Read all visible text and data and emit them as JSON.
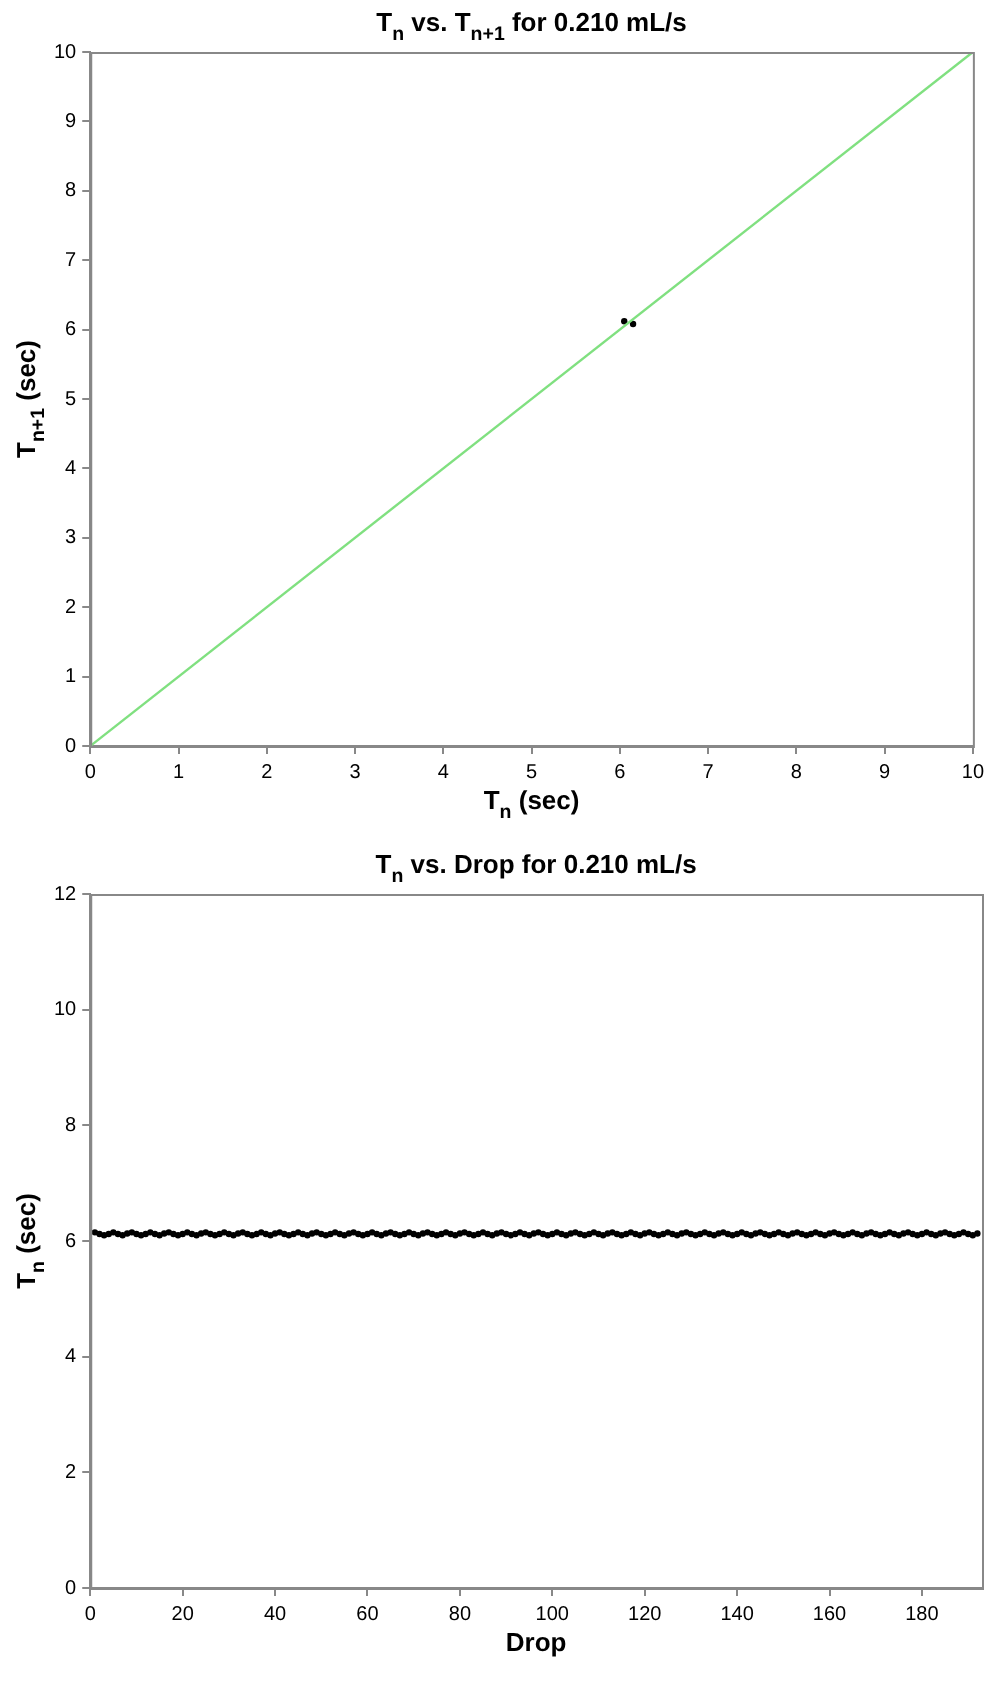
{
  "chart_data": [
    {
      "type": "scatter",
      "title": "T$_{n}$ vs. T$_{n+1}$ for 0.210 mL/s",
      "xlabel": "T$_{n}$ (sec)",
      "ylabel": "T$_{n+1}$ (sec)",
      "xlim": [
        0,
        10
      ],
      "ylim": [
        0,
        10
      ],
      "xticks": [
        0,
        1,
        2,
        3,
        4,
        5,
        6,
        7,
        8,
        9,
        10
      ],
      "yticks": [
        0,
        1,
        2,
        3,
        4,
        5,
        6,
        7,
        8,
        9,
        10
      ],
      "grid": false,
      "legend": false,
      "series": [
        {
          "type": "line",
          "marker": "none",
          "color": "#80e080",
          "x": [
            0,
            10
          ],
          "values": [
            0,
            10
          ]
        },
        {
          "type": "scatter",
          "marker": "circle",
          "color": "#000000",
          "x": [
            6.05,
            6.15
          ],
          "values": [
            6.12,
            6.08
          ]
        }
      ]
    },
    {
      "type": "scatter",
      "title": "T$_{n}$ vs. Drop for 0.210 mL/s",
      "xlabel": "Drop",
      "ylabel": "T$_{n}$ (sec)",
      "xlim": [
        0,
        193
      ],
      "ylim": [
        0,
        12
      ],
      "xticks": [
        0,
        20,
        40,
        60,
        80,
        100,
        120,
        140,
        160,
        180
      ],
      "yticks": [
        0,
        2,
        4,
        6,
        8,
        10,
        12
      ],
      "grid": false,
      "legend": false,
      "series": [
        {
          "type": "scatter",
          "marker": "circle",
          "color": "#000000",
          "x": [
            1,
            2,
            3,
            4,
            5,
            6,
            7,
            8,
            9,
            10,
            11,
            12,
            13,
            14,
            15,
            16,
            17,
            18,
            19,
            20,
            21,
            22,
            23,
            24,
            25,
            26,
            27,
            28,
            29,
            30,
            31,
            32,
            33,
            34,
            35,
            36,
            37,
            38,
            39,
            40,
            41,
            42,
            43,
            44,
            45,
            46,
            47,
            48,
            49,
            50,
            51,
            52,
            53,
            54,
            55,
            56,
            57,
            58,
            59,
            60,
            61,
            62,
            63,
            64,
            65,
            66,
            67,
            68,
            69,
            70,
            71,
            72,
            73,
            74,
            75,
            76,
            77,
            78,
            79,
            80,
            81,
            82,
            83,
            84,
            85,
            86,
            87,
            88,
            89,
            90,
            91,
            92,
            93,
            94,
            95,
            96,
            97,
            98,
            99,
            100,
            101,
            102,
            103,
            104,
            105,
            106,
            107,
            108,
            109,
            110,
            111,
            112,
            113,
            114,
            115,
            116,
            117,
            118,
            119,
            120,
            121,
            122,
            123,
            124,
            125,
            126,
            127,
            128,
            129,
            130,
            131,
            132,
            133,
            134,
            135,
            136,
            137,
            138,
            139,
            140,
            141,
            142,
            143,
            144,
            145,
            146,
            147,
            148,
            149,
            150,
            151,
            152,
            153,
            154,
            155,
            156,
            157,
            158,
            159,
            160,
            161,
            162,
            163,
            164,
            165,
            166,
            167,
            168,
            169,
            170,
            171,
            172,
            173,
            174,
            175,
            176,
            177,
            178,
            179,
            180,
            181,
            182,
            183,
            184,
            185,
            186,
            187,
            188,
            189,
            190,
            191,
            192
          ],
          "values": [
            6.15,
            6.12,
            6.1,
            6.12,
            6.15,
            6.12,
            6.1,
            6.13,
            6.15,
            6.12,
            6.1,
            6.12,
            6.15,
            6.12,
            6.1,
            6.13,
            6.15,
            6.12,
            6.1,
            6.12,
            6.15,
            6.12,
            6.1,
            6.13,
            6.15,
            6.12,
            6.1,
            6.12,
            6.15,
            6.12,
            6.1,
            6.13,
            6.15,
            6.12,
            6.1,
            6.12,
            6.15,
            6.12,
            6.1,
            6.13,
            6.15,
            6.12,
            6.1,
            6.12,
            6.15,
            6.12,
            6.1,
            6.13,
            6.15,
            6.12,
            6.1,
            6.12,
            6.15,
            6.12,
            6.1,
            6.13,
            6.15,
            6.12,
            6.1,
            6.12,
            6.15,
            6.12,
            6.1,
            6.13,
            6.15,
            6.12,
            6.1,
            6.12,
            6.15,
            6.12,
            6.1,
            6.13,
            6.15,
            6.12,
            6.1,
            6.12,
            6.15,
            6.12,
            6.1,
            6.13,
            6.15,
            6.12,
            6.1,
            6.12,
            6.15,
            6.12,
            6.1,
            6.13,
            6.15,
            6.12,
            6.1,
            6.12,
            6.15,
            6.12,
            6.1,
            6.13,
            6.15,
            6.12,
            6.1,
            6.12,
            6.15,
            6.12,
            6.1,
            6.13,
            6.15,
            6.12,
            6.1,
            6.12,
            6.15,
            6.12,
            6.1,
            6.13,
            6.15,
            6.12,
            6.1,
            6.12,
            6.15,
            6.12,
            6.1,
            6.13,
            6.15,
            6.12,
            6.1,
            6.12,
            6.15,
            6.12,
            6.1,
            6.13,
            6.15,
            6.12,
            6.1,
            6.12,
            6.15,
            6.12,
            6.1,
            6.13,
            6.15,
            6.12,
            6.1,
            6.12,
            6.15,
            6.12,
            6.1,
            6.13,
            6.15,
            6.12,
            6.1,
            6.12,
            6.15,
            6.12,
            6.1,
            6.13,
            6.15,
            6.12,
            6.1,
            6.12,
            6.15,
            6.12,
            6.1,
            6.13,
            6.15,
            6.12,
            6.1,
            6.12,
            6.15,
            6.12,
            6.1,
            6.13,
            6.15,
            6.12,
            6.1,
            6.12,
            6.15,
            6.12,
            6.1,
            6.13,
            6.15,
            6.12,
            6.1,
            6.12,
            6.15,
            6.12,
            6.1,
            6.13,
            6.15,
            6.12,
            6.1,
            6.12,
            6.15,
            6.12,
            6.1,
            6.13
          ]
        }
      ]
    }
  ]
}
